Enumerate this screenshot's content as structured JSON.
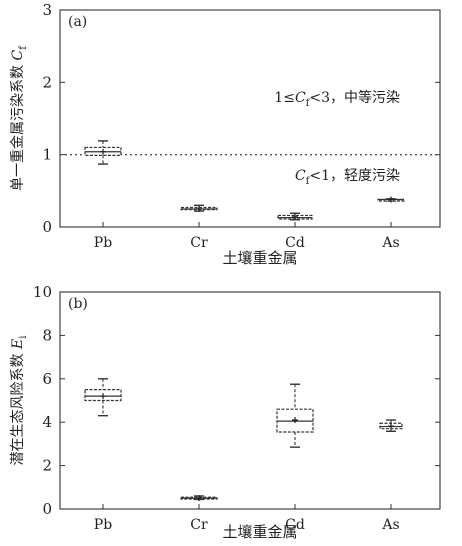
{
  "chart_data": [
    {
      "type": "box",
      "panel_label": "(a)",
      "xlabel": "土壤重金属",
      "ylabel": "单一重金属污染系数 Cf",
      "ylabel_main": "单一重金属污染系数 ",
      "ylabel_var": "C",
      "ylabel_sub": "f",
      "ylim": [
        0,
        3
      ],
      "yticks": [
        "0",
        "1",
        "2",
        "3"
      ],
      "categories": [
        "Pb",
        "Cr",
        "Cd",
        "As"
      ],
      "boxes": [
        {
          "category": "Pb",
          "min": 0.87,
          "q1": 0.99,
          "median": 1.04,
          "mean": 1.04,
          "q3": 1.1,
          "max": 1.19
        },
        {
          "category": "Cr",
          "min": 0.22,
          "q1": 0.24,
          "median": 0.25,
          "mean": 0.25,
          "q3": 0.27,
          "max": 0.3
        },
        {
          "category": "Cd",
          "min": 0.1,
          "q1": 0.11,
          "median": 0.13,
          "mean": 0.14,
          "q3": 0.16,
          "max": 0.19
        },
        {
          "category": "As",
          "min": 0.36,
          "q1": 0.37,
          "median": 0.38,
          "mean": 0.38,
          "q3": 0.38,
          "max": 0.39
        }
      ],
      "reference_line": {
        "y": 1,
        "style": "dotted"
      },
      "annotations": [
        {
          "text": "1≤Cf<3，中等污染",
          "main": "1≤",
          "var": "C",
          "sub": "f",
          "rest": "<3，中等污染",
          "y": 1.8
        },
        {
          "text": "Cf<1，轻度污染",
          "main": "",
          "var": "C",
          "sub": "f",
          "rest": "<1，轻度污染",
          "y": 0.72
        }
      ]
    },
    {
      "type": "box",
      "panel_label": "(b)",
      "xlabel": "土壤重金属",
      "ylabel": "潜在生态风险系数 Ei",
      "ylabel_main": "潜在生态风险系数 ",
      "ylabel_var": "E",
      "ylabel_sub": "i",
      "ylim": [
        0,
        10
      ],
      "yticks": [
        "0",
        "2",
        "4",
        "6",
        "8",
        "10"
      ],
      "categories": [
        "Pb",
        "Cr",
        "Cd",
        "As"
      ],
      "boxes": [
        {
          "category": "Pb",
          "min": 4.3,
          "q1": 5.0,
          "median": 5.2,
          "mean": 5.2,
          "q3": 5.5,
          "max": 6.0
        },
        {
          "category": "Cr",
          "min": 0.44,
          "q1": 0.46,
          "median": 0.5,
          "mean": 0.5,
          "q3": 0.54,
          "max": 0.6
        },
        {
          "category": "Cd",
          "min": 2.85,
          "q1": 3.55,
          "median": 4.05,
          "mean": 4.1,
          "q3": 4.6,
          "max": 5.75
        },
        {
          "category": "As",
          "min": 3.58,
          "q1": 3.7,
          "median": 3.8,
          "mean": 3.82,
          "q3": 3.95,
          "max": 4.1
        }
      ]
    }
  ]
}
